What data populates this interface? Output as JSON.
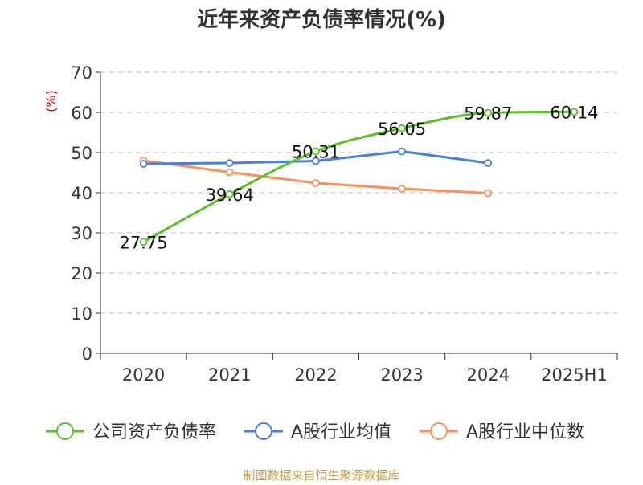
{
  "chart_data": {
    "type": "line",
    "title": "近年来资产负债率情况(%)",
    "ylabel": "(%)",
    "xlabel": "",
    "ylim": [
      0,
      70
    ],
    "yticks": [
      0,
      10,
      20,
      30,
      40,
      50,
      60,
      70
    ],
    "categories": [
      "2020",
      "2021",
      "2022",
      "2023",
      "2024",
      "2025H1"
    ],
    "grid": true,
    "legend_position": "bottom",
    "series": [
      {
        "name": "公司资产负债率",
        "color": "#5cbf2a",
        "values": [
          27.75,
          39.64,
          50.31,
          56.05,
          59.87,
          60.14
        ],
        "labels": [
          "27.75",
          "39.64",
          "50.31",
          "56.05",
          "59.87",
          "60.14"
        ],
        "smooth": true
      },
      {
        "name": "A股行业均值",
        "color": "#4a7fdb",
        "values": [
          47.2,
          47.4,
          47.9,
          50.3,
          47.4,
          null
        ],
        "smooth": false
      },
      {
        "name": "A股行业中位数",
        "color": "#f5925e",
        "values": [
          48.0,
          45.1,
          42.4,
          41.0,
          39.9,
          null
        ],
        "smooth": false
      }
    ],
    "source": "制图数据来自恒生聚源数据库"
  }
}
